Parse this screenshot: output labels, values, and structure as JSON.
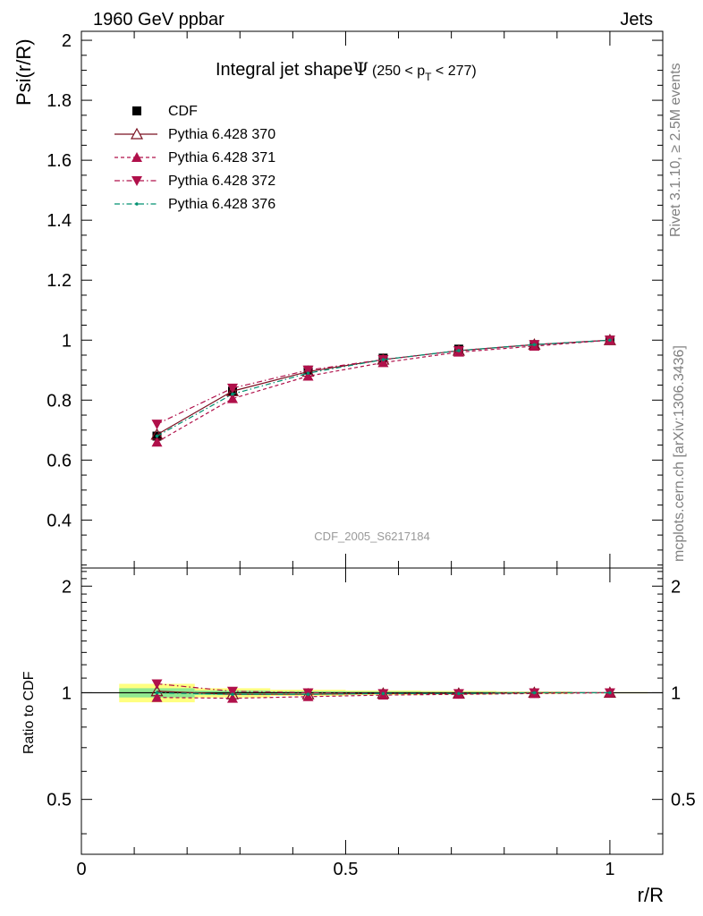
{
  "header": {
    "left": "1960 GeV ppbar",
    "right": "Jets"
  },
  "side": {
    "rivet": "Rivet 3.1.10, ≥ 2.5M events",
    "mcplots": "mcplots.cern.ch [arXiv:1306.3436]"
  },
  "analysis_id": "CDF_2005_S6217184",
  "chart_data": [
    {
      "type": "line",
      "title_main": "Integral jet shape",
      "title_symbol": "Ψ",
      "title_range_open": "(250 < p",
      "title_range_sub": "T",
      "title_range_close": " < 277)",
      "ylabel": "Psi(r/R)",
      "xlabel": "r/R",
      "xlim": [
        0,
        1.1
      ],
      "ylim": [
        0.24,
        2.03
      ],
      "y_ticks": [
        "0.4",
        "0.6",
        "0.8",
        "1",
        "1.2",
        "1.4",
        "1.6",
        "1.8",
        "2"
      ],
      "x": [
        0.143,
        0.286,
        0.429,
        0.571,
        0.714,
        0.857,
        1.0
      ],
      "legend_position": "top-left",
      "series": [
        {
          "name": "CDF",
          "style": "data",
          "color": "#000000",
          "values": [
            0.68,
            0.83,
            0.9,
            0.94,
            0.97,
            0.985,
            1.0
          ]
        },
        {
          "name": "Pythia 6.428 370",
          "style": "solid-open-up",
          "color": "#7a1020",
          "values": [
            0.685,
            0.83,
            0.895,
            0.935,
            0.965,
            0.985,
            1.0
          ]
        },
        {
          "name": "Pythia 6.428 371",
          "style": "dash-up",
          "color": "#b0104a",
          "values": [
            0.66,
            0.805,
            0.88,
            0.925,
            0.96,
            0.98,
            1.0
          ]
        },
        {
          "name": "Pythia 6.428 372",
          "style": "dashdot-down",
          "color": "#b0104a",
          "values": [
            0.72,
            0.84,
            0.9,
            0.935,
            0.965,
            0.985,
            1.0
          ]
        },
        {
          "name": "Pythia 6.428 376",
          "style": "dashdot-dot",
          "color": "#009070",
          "values": [
            0.68,
            0.82,
            0.89,
            0.935,
            0.965,
            0.985,
            1.0
          ]
        }
      ]
    },
    {
      "type": "line",
      "ylabel": "Ratio to CDF",
      "xlabel": "r/R",
      "xlim": [
        0,
        1.1
      ],
      "ylim": [
        0.35,
        2.25
      ],
      "y_ticks": [
        "0.5",
        "1",
        "2"
      ],
      "x_ticks": [
        "0",
        "0.5",
        "1"
      ],
      "x": [
        0.143,
        0.286,
        0.429,
        0.571,
        0.714,
        0.857,
        1.0
      ],
      "band_inner": [
        0.03,
        0.015,
        0.01,
        0.008,
        0.006,
        0.004,
        0.002
      ],
      "band_outer": [
        0.06,
        0.03,
        0.02,
        0.015,
        0.012,
        0.008,
        0.004
      ],
      "series": [
        {
          "name": "Pythia 6.428 370",
          "values": [
            1.01,
            0.99,
            0.99,
            0.995,
            0.995,
            1.0,
            1.0
          ]
        },
        {
          "name": "Pythia 6.428 371",
          "values": [
            0.97,
            0.965,
            0.975,
            0.985,
            0.99,
            0.995,
            1.0
          ]
        },
        {
          "name": "Pythia 6.428 372",
          "values": [
            1.06,
            1.01,
            1.0,
            0.995,
            0.995,
            1.0,
            1.0
          ]
        },
        {
          "name": "Pythia 6.428 376",
          "values": [
            1.0,
            0.99,
            0.99,
            0.995,
            0.995,
            1.0,
            1.0
          ]
        }
      ]
    }
  ]
}
